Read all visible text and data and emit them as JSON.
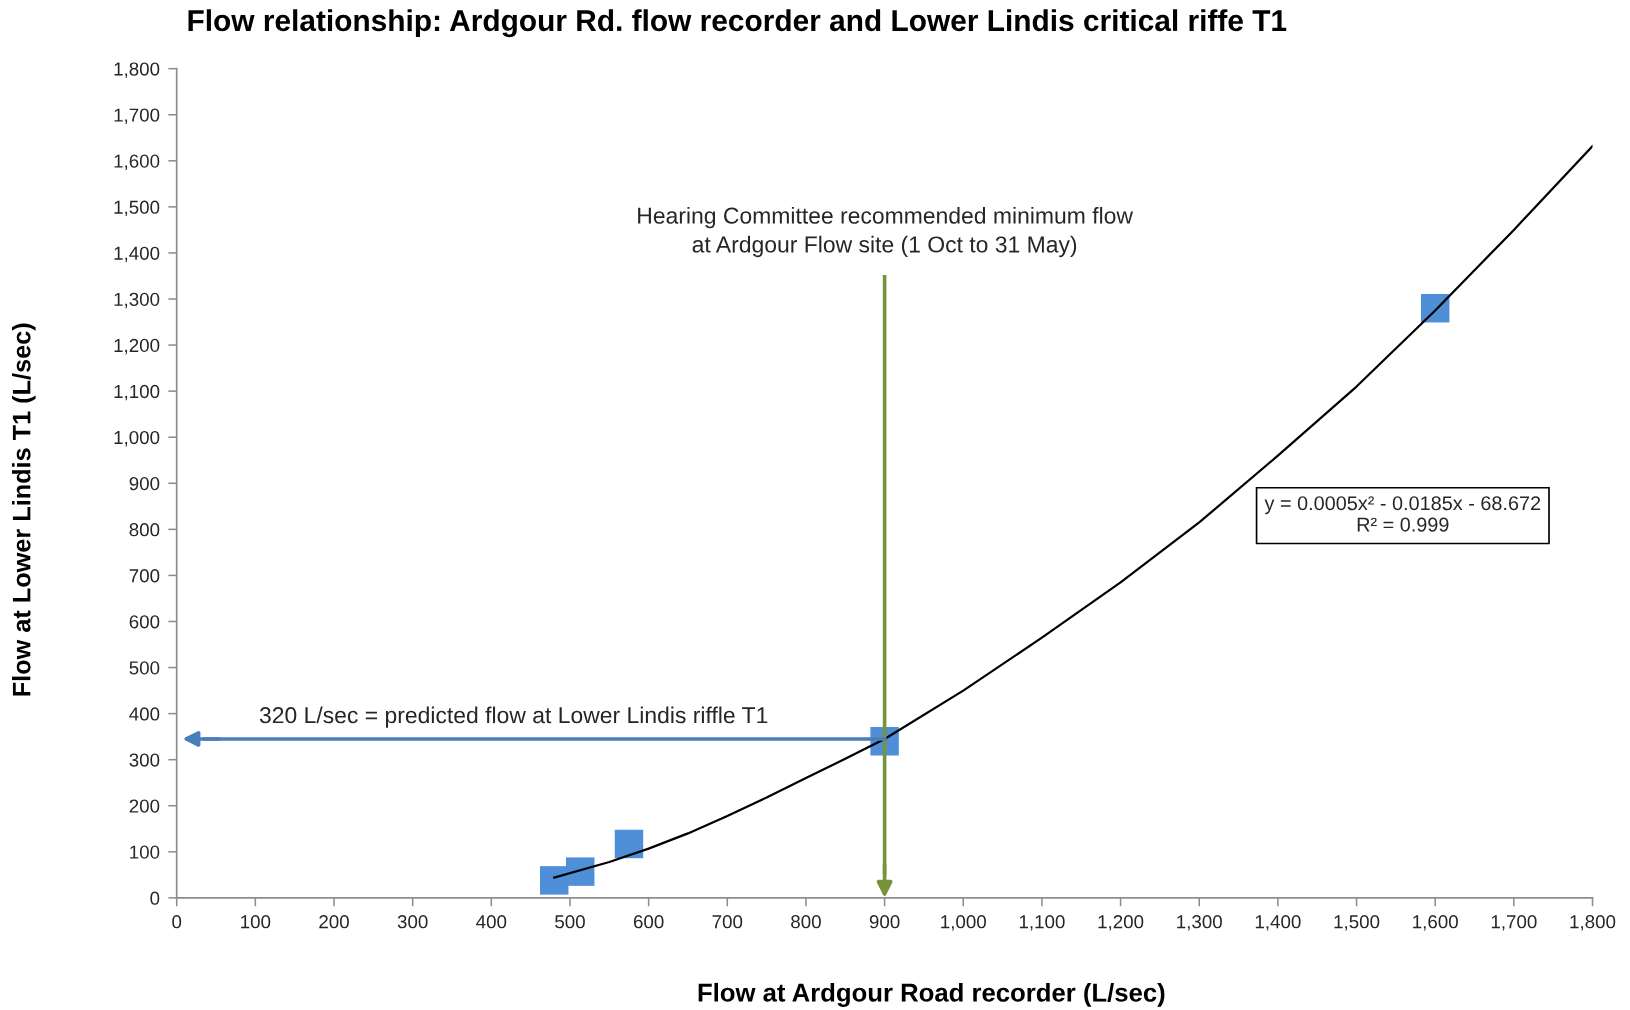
{
  "chart_data": {
    "type": "scatter",
    "title": "Flow relationship: Ardgour Rd. flow recorder and Lower Lindis critical riffe T1",
    "xlabel": "Flow at Ardgour Road recorder (L/sec)",
    "ylabel": "Flow at Lower Lindis T1 (L/sec)",
    "series": [
      {
        "color": "#4f8fd8",
        "marker": "square",
        "x": [
          480,
          513,
          575,
          900,
          1600
        ],
        "values": [
          38,
          57,
          117,
          340,
          1280
        ]
      },
      {
        "type": "line",
        "color": "#000000",
        "marker": "none",
        "line_style": "solid",
        "x": [
          480,
          550,
          600,
          650,
          700,
          750,
          800,
          850,
          900,
          1000,
          1100,
          1200,
          1300,
          1400,
          1500,
          1600,
          1700,
          1800
        ],
        "values": [
          44,
          78,
          107,
          140,
          178,
          218,
          260,
          302,
          345,
          450,
          565,
          685,
          815,
          960,
          1110,
          1275,
          1450,
          1632
        ]
      }
    ],
    "xlim": [
      0,
      1800
    ],
    "ylim": [
      0,
      1800
    ],
    "xticks": [
      0,
      100,
      200,
      300,
      400,
      500,
      600,
      700,
      800,
      900,
      {
        "value": 1000,
        "label": "1,000"
      },
      {
        "value": 1100,
        "label": "1,100"
      },
      {
        "value": 1200,
        "label": "1,200"
      },
      {
        "value": 1300,
        "label": "1,300"
      },
      {
        "value": 1400,
        "label": "1,400"
      },
      {
        "value": 1500,
        "label": "1,500"
      },
      {
        "value": 1600,
        "label": "1,600"
      },
      {
        "value": 1700,
        "label": "1,700"
      },
      {
        "value": 1800,
        "label": "1,800"
      }
    ],
    "yticks": [
      0,
      100,
      200,
      300,
      400,
      500,
      600,
      700,
      800,
      900,
      {
        "value": 1000,
        "label": "1,000"
      },
      {
        "value": 1100,
        "label": "1,100"
      },
      {
        "value": 1200,
        "label": "1,200"
      },
      {
        "value": 1300,
        "label": "1,300"
      },
      {
        "value": 1400,
        "label": "1,400"
      },
      {
        "value": 1500,
        "label": "1,500"
      },
      {
        "value": 1600,
        "label": "1,600"
      },
      {
        "value": 1700,
        "label": "1,700"
      },
      {
        "value": 1800,
        "label": "1,800"
      }
    ],
    "ref_lines": [
      {
        "axis": "x",
        "value": 900,
        "label": "Hearing Committee recommended minimum flow\nat Ardgour Flow site (1 Oct to 31 May)",
        "color": "#77933c"
      },
      {
        "axis": "y",
        "value": 345,
        "label": "320 L/sec = predicted flow at Lower Lindis riffle T1",
        "color": "#4a7ebb"
      }
    ],
    "annotations": [
      "y = 0.0005x² - 0.0185x - 68.672\nR² = 0.999"
    ],
    "legend": false
  }
}
